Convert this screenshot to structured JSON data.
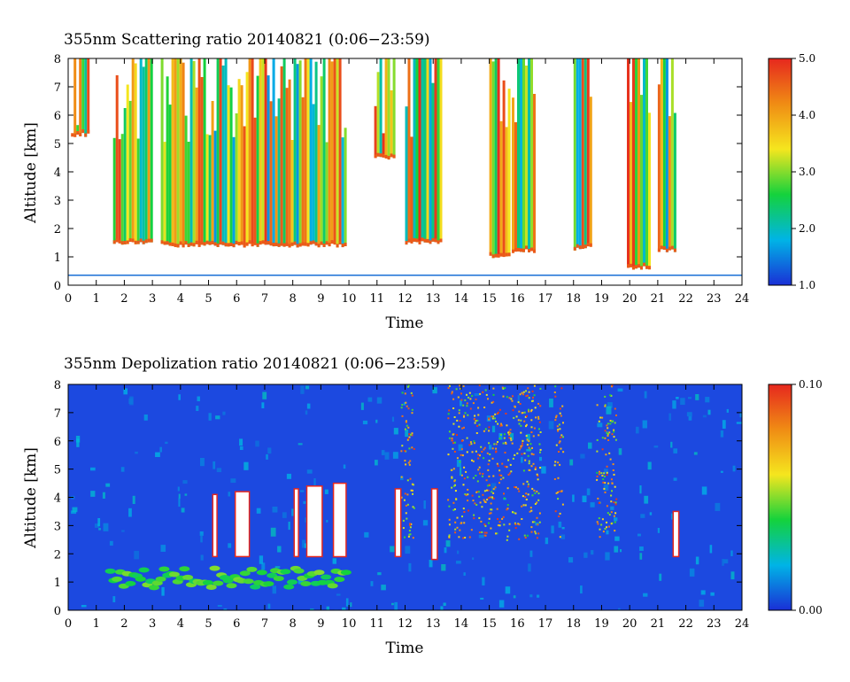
{
  "chart_data": [
    {
      "type": "heatmap",
      "title": "355nm Scattering ratio  20140821 (0:06−23:59)",
      "xlabel": "Time",
      "ylabel": "Altitude [km]",
      "xlim": [
        0,
        24
      ],
      "ylim": [
        0,
        8
      ],
      "x_ticks": [
        "0",
        "1",
        "2",
        "3",
        "4",
        "5",
        "6",
        "7",
        "8",
        "9",
        "10",
        "11",
        "12",
        "13",
        "14",
        "15",
        "16",
        "17",
        "18",
        "19",
        "20",
        "21",
        "22",
        "23",
        "24"
      ],
      "y_ticks": [
        "0",
        "1",
        "2",
        "3",
        "4",
        "5",
        "6",
        "7",
        "8"
      ],
      "colorbar": {
        "min": 1.0,
        "max": 5.0,
        "labels": [
          "1.0",
          "2.0",
          "3.0",
          "4.0",
          "5.0"
        ]
      },
      "colormap": [
        "#1a2fd6",
        "#00b4e6",
        "#14d23c",
        "#f5e61e",
        "#f08c14",
        "#e6281e"
      ],
      "cloud_base_km": [
        {
          "from": 0.1,
          "to": 0.7,
          "base": 5.3
        },
        {
          "from": 1.6,
          "to": 3.0,
          "base": 1.5
        },
        {
          "from": 3.3,
          "to": 9.9,
          "base": 1.4
        },
        {
          "from": 10.9,
          "to": 11.6,
          "base": 4.5
        },
        {
          "from": 12.0,
          "to": 13.3,
          "base": 1.5
        },
        {
          "from": 15.0,
          "to": 15.7,
          "base": 1.0
        },
        {
          "from": 15.8,
          "to": 16.6,
          "base": 1.2
        },
        {
          "from": 18.0,
          "to": 18.6,
          "base": 1.3
        },
        {
          "from": 19.9,
          "to": 20.7,
          "base": 0.6
        },
        {
          "from": 21.0,
          "to": 21.6,
          "base": 1.2
        }
      ]
    },
    {
      "type": "heatmap",
      "title": "355nm Depolization ratio  20140821 (0:06−23:59)",
      "xlabel": "Time",
      "ylabel": "Altitude [km]",
      "xlim": [
        0,
        24
      ],
      "ylim": [
        0,
        8
      ],
      "x_ticks": [
        "0",
        "1",
        "2",
        "3",
        "4",
        "5",
        "6",
        "7",
        "8",
        "9",
        "10",
        "11",
        "12",
        "13",
        "14",
        "15",
        "16",
        "17",
        "18",
        "19",
        "20",
        "21",
        "22",
        "23",
        "24"
      ],
      "y_ticks": [
        "0",
        "1",
        "2",
        "3",
        "4",
        "5",
        "6",
        "7",
        "8"
      ],
      "colorbar": {
        "min": 0.0,
        "max": 0.1,
        "labels": [
          "0.00",
          "0.10"
        ]
      },
      "colormap": [
        "#1a2fd6",
        "#00b4e6",
        "#14d23c",
        "#f5e61e",
        "#f08c14",
        "#e6281e"
      ],
      "high_depol_time_ranges": [
        [
          11.8,
          12.3
        ],
        [
          13.5,
          16.8
        ],
        [
          17.3,
          17.6
        ],
        [
          18.8,
          19.5
        ]
      ],
      "aerosol_layer_km": [
        0.8,
        1.5
      ],
      "no_data_columns": [
        {
          "from": 5.15,
          "to": 5.3,
          "bottom": 1.9,
          "top": 4.1
        },
        {
          "from": 5.95,
          "to": 6.45,
          "bottom": 1.9,
          "top": 4.2
        },
        {
          "from": 8.05,
          "to": 8.2,
          "bottom": 1.9,
          "top": 4.3
        },
        {
          "from": 8.5,
          "to": 9.05,
          "bottom": 1.9,
          "top": 4.4
        },
        {
          "from": 9.45,
          "to": 9.9,
          "bottom": 1.9,
          "top": 4.5
        },
        {
          "from": 11.65,
          "to": 11.85,
          "bottom": 1.9,
          "top": 4.3
        },
        {
          "from": 12.95,
          "to": 13.15,
          "bottom": 1.8,
          "top": 4.3
        },
        {
          "from": 21.55,
          "to": 21.75,
          "bottom": 1.9,
          "top": 3.5
        }
      ]
    }
  ]
}
